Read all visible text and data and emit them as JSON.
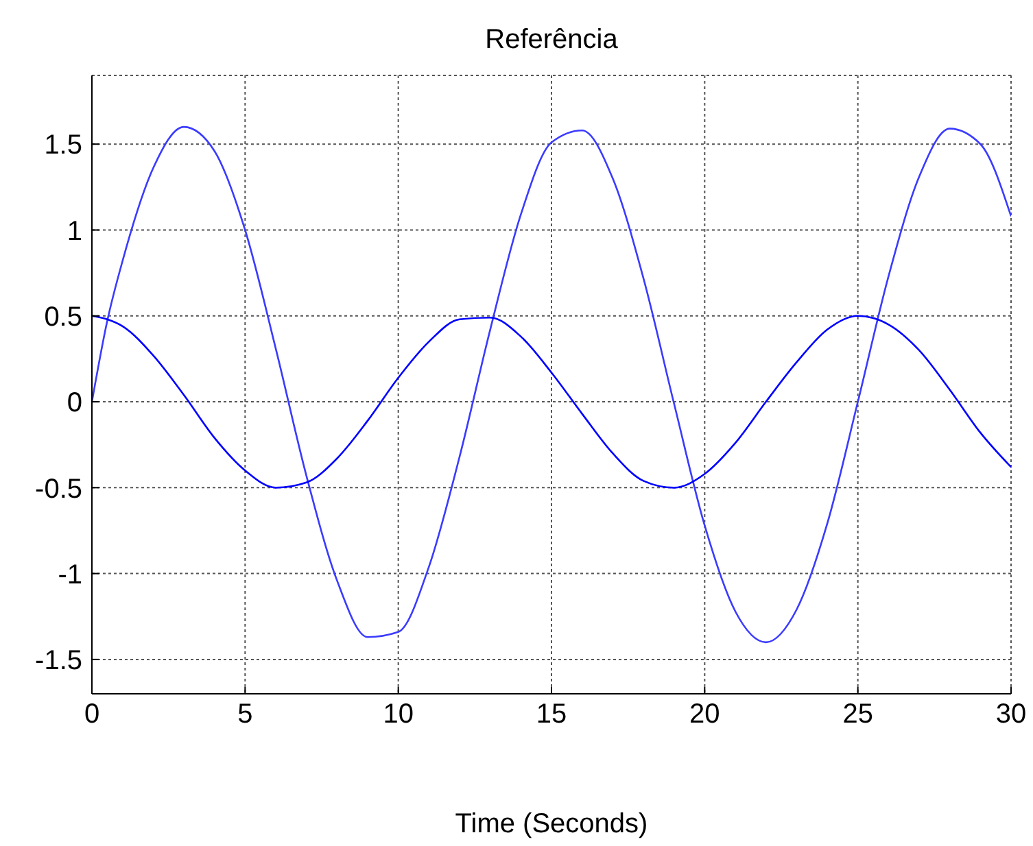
{
  "chart_data": {
    "type": "line",
    "title": "Referência",
    "xlabel": "Time (Seconds)",
    "x": [
      0,
      0.5,
      1,
      2,
      3,
      4,
      5,
      6,
      7,
      8,
      9,
      10,
      11,
      12,
      13,
      14,
      15,
      16,
      17,
      18,
      19,
      20,
      21,
      22,
      23,
      24,
      25,
      26,
      27,
      28,
      29,
      30
    ],
    "series": [
      {
        "color": "#3b3bff",
        "values": [
          0,
          0.47,
          0.82,
          1.36,
          1.6,
          1.46,
          1.0,
          0.31,
          -0.43,
          -1.04,
          -1.37,
          -1.34,
          -0.96,
          -0.32,
          0.42,
          1.09,
          1.51,
          1.58,
          1.3,
          0.72,
          -0.01,
          -0.72,
          -1.22,
          -1.4,
          -1.21,
          -0.71,
          0.0,
          0.73,
          1.31,
          1.59,
          1.5,
          1.08
        ]
      },
      {
        "color": "#0000ff",
        "values": [
          0.5,
          0.48,
          0.44,
          0.27,
          0.04,
          -0.21,
          -0.4,
          -0.5,
          -0.47,
          -0.33,
          -0.11,
          0.14,
          0.35,
          0.48,
          0.49,
          0.38,
          0.17,
          -0.07,
          -0.3,
          -0.46,
          -0.5,
          -0.42,
          -0.24,
          0.0,
          0.23,
          0.42,
          0.5,
          0.45,
          0.3,
          0.07,
          -0.18,
          -0.38
        ]
      }
    ],
    "xlim": [
      0,
      30
    ],
    "xticks": [
      0,
      5,
      10,
      15,
      20,
      25,
      30
    ],
    "ylim": [
      -1.7,
      1.9
    ],
    "yticks": [
      -1.5,
      -1,
      -0.5,
      0,
      0.5,
      1,
      1.5
    ],
    "grid": true,
    "line_style": "solid",
    "marker": "none"
  }
}
